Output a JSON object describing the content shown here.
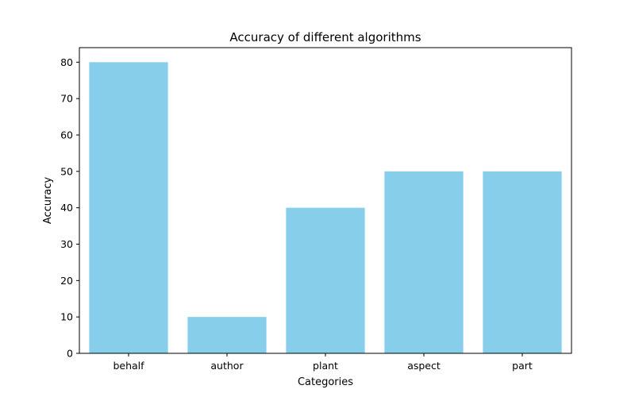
{
  "chart_data": {
    "type": "bar",
    "title": "Accuracy of different algorithms",
    "xlabel": "Categories",
    "ylabel": "Accuracy",
    "categories": [
      "behalf",
      "author",
      "plant",
      "aspect",
      "part"
    ],
    "values": [
      80,
      10,
      40,
      50,
      50
    ],
    "ylim": [
      0,
      84
    ],
    "yticks": [
      0,
      10,
      20,
      30,
      40,
      50,
      60,
      70,
      80
    ],
    "ytick_labels": [
      "0",
      "10",
      "20",
      "30",
      "40",
      "50",
      "60",
      "70",
      "80"
    ],
    "grid": false,
    "bar_color": "#87CEEB"
  }
}
